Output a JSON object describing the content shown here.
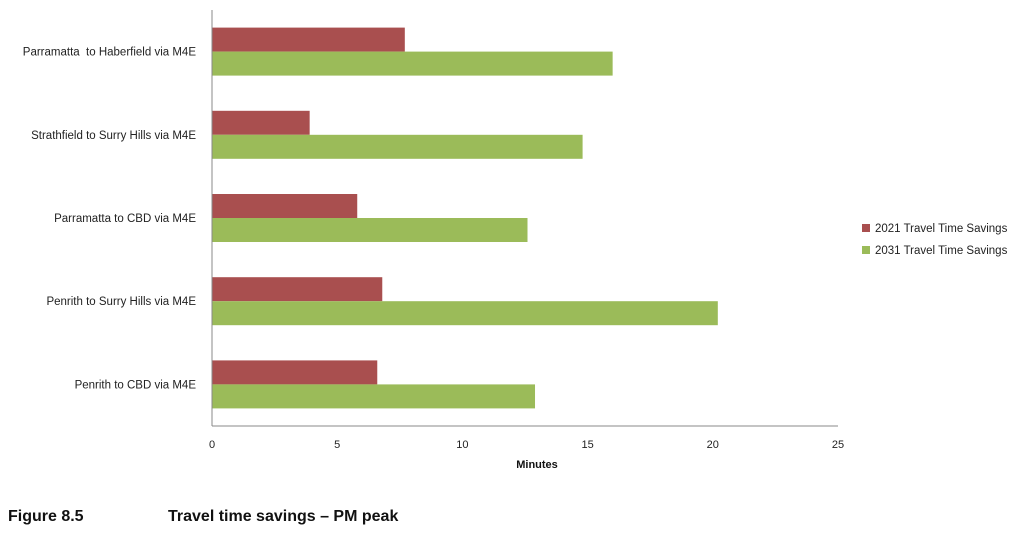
{
  "chart_data": {
    "type": "bar",
    "orientation": "horizontal",
    "categories": [
      "Parramatta  to Haberfield via M4E",
      "Strathfield to Surry Hills via M4E",
      "Parramatta to CBD via M4E",
      "Penrith to Surry Hills via M4E",
      "Penrith to CBD via M4E"
    ],
    "series": [
      {
        "name": "2021 Travel Time Savings",
        "color": "#a94f4f",
        "values": [
          7.7,
          3.9,
          5.8,
          6.8,
          6.6
        ]
      },
      {
        "name": "2031 Travel Time Savings",
        "color": "#9bbb59",
        "values": [
          16.0,
          14.8,
          12.6,
          20.2,
          12.9
        ]
      }
    ],
    "xlabel": "Minutes",
    "xlim": [
      0,
      25
    ],
    "xticks": [
      0,
      5,
      10,
      15,
      20,
      25
    ],
    "grid": false,
    "legend_position": "right"
  },
  "caption": {
    "number": "Figure 8.5",
    "title": "Travel time savings – PM peak"
  }
}
